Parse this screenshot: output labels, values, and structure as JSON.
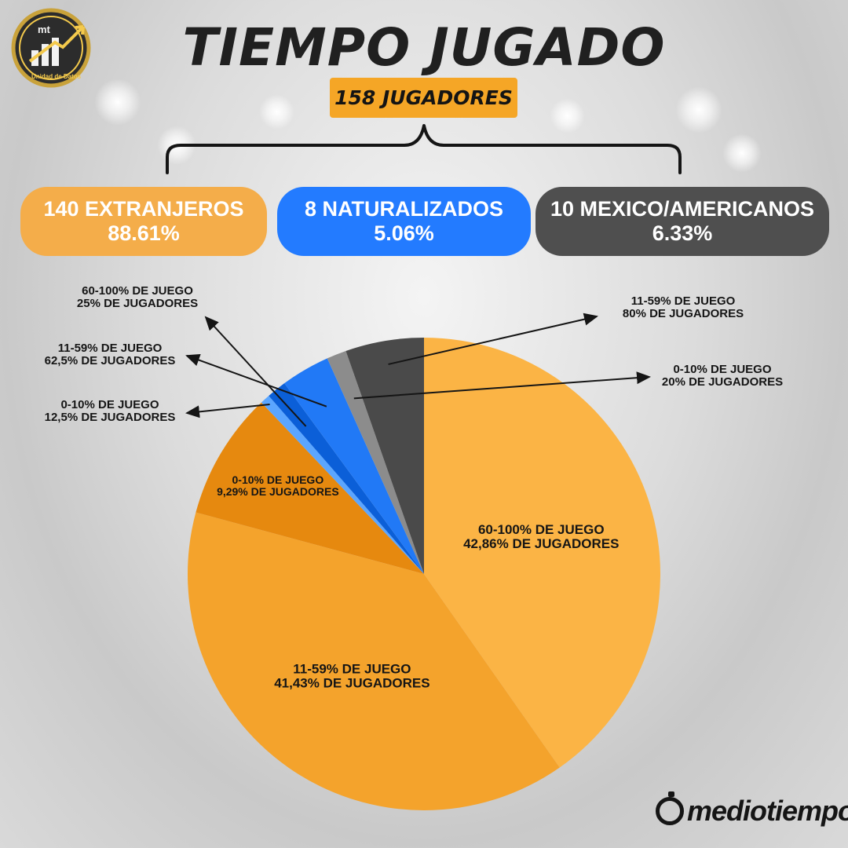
{
  "header": {
    "title": "TIEMPO JUGADO",
    "total_label": "158 JUGADORES"
  },
  "logo": {
    "text": "mt",
    "subtitle": "Unidad de Datos"
  },
  "groups": [
    {
      "count_label": "140 EXTRANJEROS",
      "percent_label": "88.61%",
      "color": "#f4ad4a"
    },
    {
      "count_label": "8 NATURALIZADOS",
      "percent_label": "5.06%",
      "color": "#237bff"
    },
    {
      "count_label": "10 MEXICO/AMERICANOS",
      "percent_label": "6.33%",
      "color": "#4f4f4f"
    }
  ],
  "chart_data": {
    "type": "pie",
    "start": "top, clockwise",
    "slices": [
      {
        "group": "Extranjeros",
        "value": 37.98,
        "color": "#fbb445",
        "label_range": "60-100% DE JUEGO",
        "label_share": "42,86% DE JUGADORES"
      },
      {
        "group": "Extranjeros",
        "value": 36.71,
        "color": "#f4a32c",
        "label_range": "11-59% DE JUEGO",
        "label_share": "41,43% DE JUGADORES"
      },
      {
        "group": "Extranjeros",
        "value": 8.23,
        "color": "#e6890f",
        "label_range": "0-10% DE JUEGO",
        "label_share": "9,29% DE JUGADORES"
      },
      {
        "group": "Naturalizados",
        "value": 0.63,
        "color": "#5ba6ff",
        "label_range": "0-10% DE JUEGO",
        "label_share": "12,5% DE JUGADORES"
      },
      {
        "group": "Naturalizados",
        "value": 1.27,
        "color": "#0b5fd8",
        "label_range": "60-100% DE JUEGO",
        "label_share": "25% DE JUGADORES"
      },
      {
        "group": "Naturalizados",
        "value": 3.16,
        "color": "#2179f6",
        "label_range": "11-59% DE JUEGO",
        "label_share": "62,5% DE JUGADORES"
      },
      {
        "group": "Mexico/Americanos",
        "value": 1.27,
        "color": "#8c8c8c",
        "label_range": "0-10% DE JUEGO",
        "label_share": "20% DE JUGADORES"
      },
      {
        "group": "Mexico/Americanos",
        "value": 5.06,
        "color": "#4a4a4a",
        "label_range": "11-59% DE JUEGO",
        "label_share": "80% DE JUGADORES"
      }
    ]
  },
  "brand": {
    "name": "mediotiempo"
  }
}
